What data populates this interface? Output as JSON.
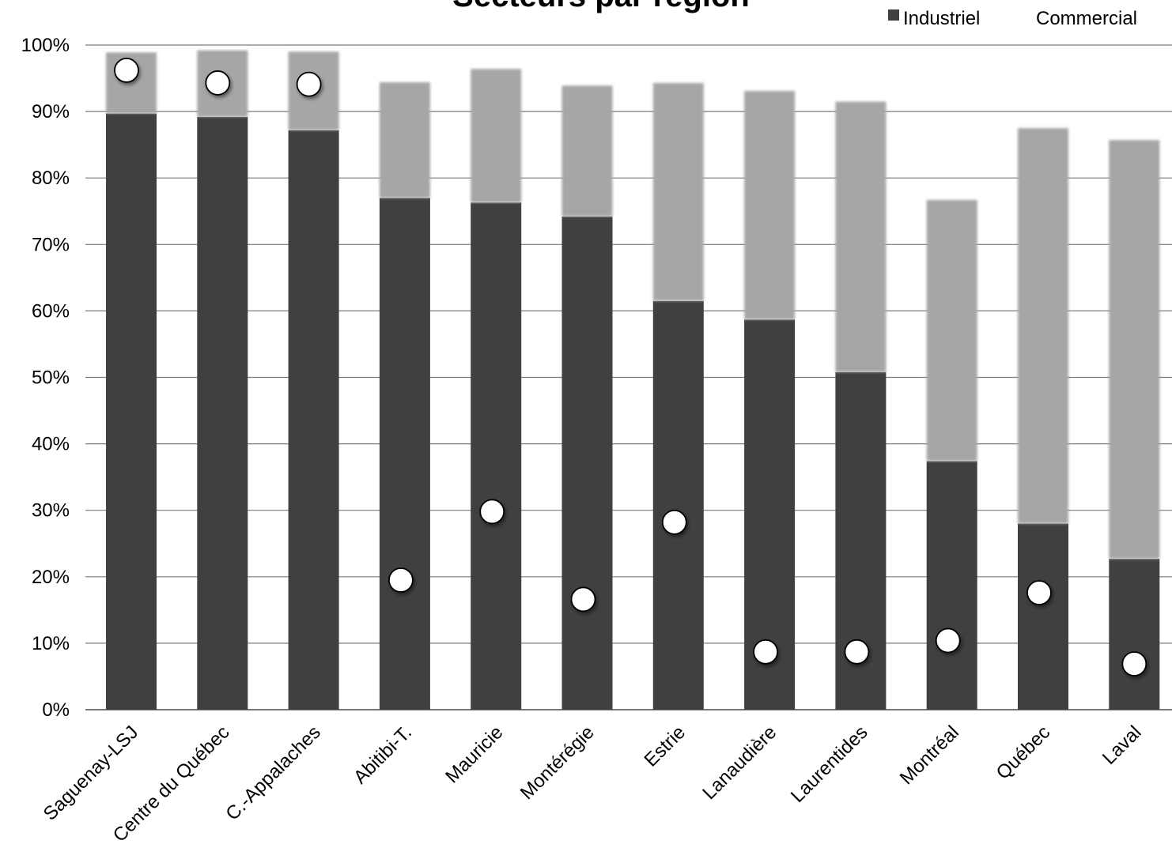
{
  "chart_data": {
    "type": "bar",
    "stacked": true,
    "title": "Secteurs par région",
    "xlabel": "",
    "ylabel": "",
    "ylim": [
      0,
      100
    ],
    "yticks": [
      "0%",
      "10%",
      "20%",
      "30%",
      "40%",
      "50%",
      "60%",
      "70%",
      "80%",
      "90%",
      "100%"
    ],
    "legend_position": "top-right",
    "grid": true,
    "categories": [
      "Saguenay-LSJ",
      "Centre du Québec",
      "C.-Appalaches",
      "Abitibi-T.",
      "Mauricie",
      "Montérégie",
      "Estrie",
      "Lanaudière",
      "Laurentides",
      "Montréal",
      "Québec",
      "Laval"
    ],
    "series": [
      {
        "name": "Industriel",
        "color": "#404040",
        "values": [
          89.7,
          89.2,
          87.2,
          77.0,
          76.3,
          74.2,
          61.5,
          58.7,
          50.8,
          37.4,
          28.0,
          22.7
        ]
      },
      {
        "name": "Commercial",
        "color": "#a6a6a6",
        "values": [
          9.2,
          10.0,
          11.8,
          17.4,
          20.1,
          19.7,
          32.8,
          34.4,
          40.7,
          39.3,
          59.5,
          63.0
        ]
      }
    ],
    "markers": {
      "color": "#ffffff",
      "values": [
        96.2,
        94.3,
        94.1,
        19.5,
        29.8,
        16.6,
        28.2,
        8.7,
        8.7,
        10.4,
        17.6,
        6.9
      ]
    }
  }
}
